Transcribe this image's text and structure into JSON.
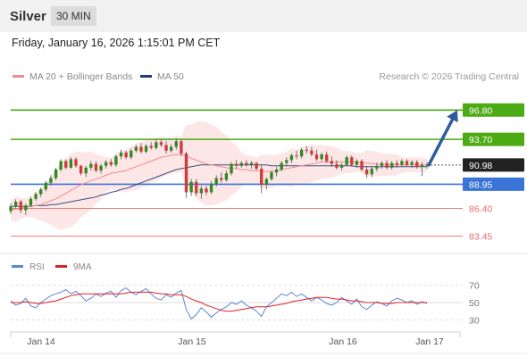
{
  "header": {
    "instrument": "Silver",
    "timeframe": "30 MIN",
    "datetime": "Friday, January 16, 2026 1:15:01 PM CET"
  },
  "legend": {
    "ma20_label": "MA 20 + Bollinger Bands",
    "ma50_label": "MA 50",
    "credit": "Research © 2026 Trading Central"
  },
  "colors": {
    "resistance": "#4caa14",
    "support_primary": "#3a74d6",
    "support_secondary": "#e56a6a",
    "current_price_tag": "#222222",
    "ma20": "#f28b8b",
    "ma50": "#1f3d78",
    "bollinger_fill": "#fde2e2",
    "candle_up": "#2e8b22",
    "candle_down": "#d03a3a",
    "arrow": "#2f5d9c",
    "rsi": "#5b86d6",
    "rsi_ma": "#e02020"
  },
  "chart_data": [
    {
      "type": "candlestick",
      "title": "",
      "x_ticks": [
        "Jan 14",
        "Jan 15",
        "Jan 16",
        "Jan 17"
      ],
      "ylim": [
        82.0,
        99.0
      ],
      "levels": [
        {
          "value": 96.8,
          "label": "96.80",
          "kind": "resistance"
        },
        {
          "value": 93.7,
          "label": "93.70",
          "kind": "resistance"
        },
        {
          "value": 90.98,
          "label": "90.98",
          "kind": "current"
        },
        {
          "value": 88.95,
          "label": "88.95",
          "kind": "support_primary"
        },
        {
          "value": 86.4,
          "label": "86.40",
          "kind": "support_secondary"
        },
        {
          "value": 83.45,
          "label": "83.45",
          "kind": "support_secondary"
        }
      ],
      "forecast_arrow": {
        "from": 90.98,
        "to": 96.8
      },
      "series": [
        {
          "name": "Silver",
          "ohlc": [
            [
              86.1,
              86.95,
              85.8,
              86.6
            ],
            [
              86.6,
              87.35,
              86.4,
              87.1
            ],
            [
              87.1,
              87.3,
              85.9,
              86.2
            ],
            [
              86.2,
              86.9,
              85.7,
              86.7
            ],
            [
              86.7,
              87.6,
              86.5,
              87.4
            ],
            [
              87.4,
              88.1,
              87.2,
              87.9
            ],
            [
              87.9,
              88.6,
              87.6,
              88.4
            ],
            [
              88.4,
              89.3,
              88.2,
              89.1
            ],
            [
              89.1,
              89.9,
              88.8,
              89.6
            ],
            [
              89.6,
              90.7,
              89.4,
              90.5
            ],
            [
              90.5,
              91.6,
              90.3,
              91.4
            ],
            [
              91.4,
              91.6,
              90.5,
              90.7
            ],
            [
              90.7,
              91.8,
              90.6,
              91.6
            ],
            [
              91.6,
              91.8,
              90.7,
              90.9
            ],
            [
              90.9,
              91.0,
              89.9,
              90.1
            ],
            [
              90.1,
              90.9,
              89.7,
              90.7
            ],
            [
              90.7,
              91.4,
              90.4,
              91.1
            ],
            [
              91.1,
              91.4,
              90.2,
              90.4
            ],
            [
              90.4,
              91.1,
              90.1,
              90.9
            ],
            [
              90.9,
              91.5,
              90.6,
              91.3
            ],
            [
              91.3,
              91.6,
              90.8,
              91.0
            ],
            [
              91.0,
              92.1,
              90.8,
              91.9
            ],
            [
              91.9,
              92.6,
              91.6,
              92.3
            ],
            [
              92.3,
              92.5,
              91.6,
              91.8
            ],
            [
              91.8,
              92.7,
              91.6,
              92.5
            ],
            [
              92.5,
              93.1,
              92.3,
              92.9
            ],
            [
              92.9,
              93.3,
              92.2,
              92.4
            ],
            [
              92.4,
              93.2,
              92.2,
              93.0
            ],
            [
              93.0,
              93.4,
              92.6,
              92.8
            ],
            [
              92.8,
              93.7,
              92.6,
              93.4
            ],
            [
              93.4,
              93.7,
              92.9,
              93.1
            ],
            [
              93.1,
              93.5,
              92.2,
              92.5
            ],
            [
              92.5,
              93.2,
              92.3,
              92.9
            ],
            [
              92.9,
              93.8,
              92.6,
              93.5
            ],
            [
              93.5,
              93.7,
              91.9,
              92.2
            ],
            [
              92.2,
              92.4,
              87.5,
              88.1
            ],
            [
              88.1,
              89.5,
              87.7,
              89.2
            ],
            [
              89.2,
              89.5,
              87.7,
              88.0
            ],
            [
              88.0,
              88.8,
              87.4,
              88.5
            ],
            [
              88.5,
              88.8,
              87.8,
              88.1
            ],
            [
              88.1,
              89.3,
              87.9,
              89.0
            ],
            [
              89.0,
              89.9,
              88.7,
              89.6
            ],
            [
              89.6,
              90.2,
              89.1,
              89.4
            ],
            [
              89.4,
              90.4,
              89.2,
              90.1
            ],
            [
              90.1,
              91.3,
              89.9,
              91.1
            ],
            [
              91.1,
              91.5,
              90.6,
              90.9
            ],
            [
              90.9,
              91.4,
              90.7,
              91.2
            ],
            [
              91.2,
              91.5,
              90.8,
              91.0
            ],
            [
              91.0,
              91.4,
              90.6,
              91.2
            ],
            [
              91.2,
              91.3,
              90.4,
              90.6
            ],
            [
              90.6,
              91.0,
              88.0,
              88.9
            ],
            [
              88.9,
              89.7,
              88.4,
              89.5
            ],
            [
              89.5,
              90.4,
              89.3,
              90.2
            ],
            [
              90.2,
              90.8,
              89.8,
              90.5
            ],
            [
              90.5,
              91.4,
              90.3,
              91.2
            ],
            [
              91.2,
              91.8,
              90.9,
              91.5
            ],
            [
              91.5,
              92.2,
              91.2,
              92.0
            ],
            [
              92.0,
              92.5,
              91.6,
              91.9
            ],
            [
              91.9,
              92.8,
              91.7,
              92.6
            ],
            [
              92.6,
              93.0,
              92.2,
              92.5
            ],
            [
              92.5,
              92.9,
              91.9,
              92.1
            ],
            [
              92.1,
              92.6,
              91.4,
              91.6
            ],
            [
              91.6,
              92.3,
              91.4,
              92.1
            ],
            [
              92.1,
              92.4,
              91.2,
              91.4
            ],
            [
              91.4,
              91.9,
              90.8,
              91.1
            ],
            [
              91.1,
              91.5,
              90.5,
              90.7
            ],
            [
              90.7,
              91.2,
              90.4,
              91.0
            ],
            [
              91.0,
              92.0,
              90.9,
              91.8
            ],
            [
              91.8,
              92.0,
              90.8,
              91.0
            ],
            [
              91.0,
              91.6,
              90.7,
              91.4
            ],
            [
              91.4,
              91.6,
              90.3,
              90.5
            ],
            [
              90.5,
              90.9,
              89.6,
              90.0
            ],
            [
              90.0,
              90.8,
              89.7,
              90.6
            ],
            [
              90.6,
              91.2,
              90.3,
              90.9
            ],
            [
              90.9,
              91.4,
              90.6,
              91.2
            ],
            [
              91.2,
              91.5,
              90.5,
              90.7
            ],
            [
              90.7,
              91.4,
              90.5,
              91.2
            ],
            [
              91.2,
              91.5,
              90.7,
              91.0
            ],
            [
              91.0,
              91.6,
              90.8,
              91.4
            ],
            [
              91.4,
              91.6,
              90.8,
              91.0
            ],
            [
              91.0,
              91.5,
              90.7,
              91.3
            ],
            [
              91.3,
              91.5,
              90.6,
              90.8
            ],
            [
              90.8,
              91.3,
              89.8,
              91.0
            ],
            [
              91.0,
              91.3,
              90.6,
              90.98
            ]
          ]
        },
        {
          "name": "MA 20 + Bollinger Bands",
          "values": [
            86.2,
            86.3,
            86.4,
            86.5,
            86.6,
            86.7,
            86.8,
            87.0,
            87.2,
            87.4,
            87.7,
            88.0,
            88.3,
            88.6,
            88.9,
            89.1,
            89.3,
            89.5,
            89.7,
            89.9,
            90.1,
            90.2,
            90.3,
            90.4,
            90.6,
            90.8,
            91.0,
            91.2,
            91.4,
            91.6,
            91.8,
            91.9,
            92.0,
            92.1,
            92.1,
            92.0,
            91.7,
            91.5,
            91.3,
            91.1,
            91.0,
            90.9,
            90.8,
            90.7,
            90.6,
            90.6,
            90.5,
            90.5,
            90.4,
            90.4,
            90.3,
            90.3,
            90.3,
            90.4,
            90.5,
            90.6,
            90.7,
            90.8,
            90.9,
            91.0,
            91.1,
            91.2,
            91.3,
            91.3,
            91.3,
            91.3,
            91.3,
            91.3,
            91.3,
            91.3,
            91.2,
            91.2,
            91.1,
            91.1,
            91.0,
            91.0,
            91.0,
            91.0,
            91.0,
            91.0,
            91.0,
            91.0,
            91.0,
            91.0
          ]
        },
        {
          "name": "MA 50",
          "values": [
            86.6,
            86.6,
            86.6,
            86.6,
            86.6,
            86.7,
            86.7,
            86.7,
            86.8,
            86.8,
            86.9,
            87.0,
            87.1,
            87.2,
            87.3,
            87.4,
            87.5,
            87.6,
            87.8,
            87.9,
            88.1,
            88.2,
            88.4,
            88.5,
            88.7,
            88.9,
            89.1,
            89.3,
            89.5,
            89.7,
            89.9,
            90.1,
            90.3,
            90.5,
            90.6,
            90.7,
            90.8,
            90.9,
            91.0,
            91.0,
            91.0,
            91.0,
            91.0,
            91.0,
            91.0,
            91.0,
            91.0,
            91.0,
            91.0,
            91.0,
            91.0,
            91.0,
            90.9,
            90.9,
            90.9,
            90.9,
            90.9,
            90.9,
            90.9,
            90.9,
            90.9,
            90.9,
            90.9,
            90.9,
            90.9,
            90.9,
            90.9,
            90.9,
            90.9,
            90.8,
            90.8,
            90.8,
            90.8,
            90.8,
            90.8,
            90.8,
            90.8,
            90.8,
            90.8,
            90.8,
            90.8,
            90.8,
            90.8,
            90.8
          ]
        }
      ]
    },
    {
      "type": "line",
      "title": "",
      "ylim": [
        20,
        80
      ],
      "y_ticks": [
        70,
        50,
        30
      ],
      "reference_levels": [
        70,
        50,
        30
      ],
      "series": [
        {
          "name": "RSI",
          "values": [
            52,
            47,
            49,
            55,
            46,
            44,
            50,
            54,
            58,
            60,
            62,
            65,
            60,
            63,
            58,
            52,
            55,
            60,
            57,
            61,
            63,
            56,
            64,
            67,
            62,
            59,
            63,
            66,
            60,
            55,
            53,
            59,
            56,
            61,
            64,
            42,
            31,
            36,
            44,
            39,
            33,
            38,
            42,
            45,
            50,
            48,
            52,
            47,
            44,
            40,
            34,
            45,
            50,
            55,
            60,
            58,
            62,
            57,
            60,
            56,
            52,
            56,
            53,
            49,
            47,
            50,
            56,
            52,
            48,
            54,
            45,
            42,
            47,
            51,
            49,
            46,
            52,
            55,
            53,
            50,
            52,
            48,
            51,
            49
          ]
        },
        {
          "name": "9MA",
          "values": [
            50,
            50,
            50,
            51,
            50,
            49,
            49,
            50,
            51,
            52,
            54,
            56,
            58,
            59,
            60,
            60,
            60,
            60,
            60,
            60,
            60,
            60,
            60,
            61,
            62,
            62,
            62,
            62,
            62,
            61,
            60,
            60,
            59,
            59,
            59,
            57,
            54,
            52,
            50,
            47,
            45,
            43,
            41,
            40,
            40,
            41,
            42,
            43,
            44,
            45,
            45,
            45,
            46,
            47,
            48,
            49,
            51,
            52,
            53,
            54,
            55,
            56,
            56,
            56,
            55,
            54,
            54,
            53,
            52,
            52,
            51,
            50,
            50,
            50,
            49,
            49,
            49,
            50,
            50,
            50,
            50,
            50,
            50,
            50
          ]
        }
      ]
    }
  ]
}
